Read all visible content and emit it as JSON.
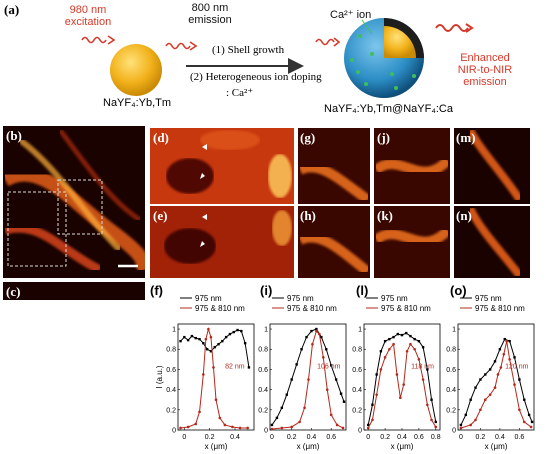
{
  "schematic": {
    "panel_label": "(a)",
    "excitation_label": [
      "980 nm",
      "excitation"
    ],
    "emission_label": [
      "800 nm",
      "emission"
    ],
    "core_label": "NaYF₄:Yb,Tm",
    "step1": "(1) Shell growth",
    "step2": "(2) Heterogeneous ion doping",
    "step2_sub": ": Ca²⁺",
    "ca_label": "Ca²⁺ ion",
    "product_label": "NaYF₄:Yb,Tm@NaYF₄:Ca",
    "enhanced_label": [
      "Enhanced",
      "NIR-to-NIR",
      "emission"
    ]
  },
  "image_panels": {
    "b": "(b)",
    "c": "(c)",
    "d": "(d)",
    "e": "(e)",
    "g": "(g)",
    "h": "(h)",
    "j": "(j)",
    "k": "(k)",
    "m": "(m)",
    "n": "(n)"
  },
  "colors": {
    "black_series": "#000000",
    "red_series": "#b5281c",
    "core": "#f2b21c",
    "shell": "#2c8ec6",
    "arrow_red": "#d63a2a"
  },
  "chart_data": [
    {
      "panel": "(f)",
      "type": "line",
      "ylabel": "I (a.u.)",
      "xlabel": "x (μm)",
      "xlim": [
        -0.05,
        0.55
      ],
      "ylim": [
        0,
        1.05
      ],
      "xticks": [
        "0",
        "0.2",
        "0.4"
      ],
      "yticks": [
        "0",
        "0.2",
        "0.4",
        "0.6",
        "0.8",
        "1"
      ],
      "annotation": "82 nm",
      "series": [
        {
          "name": "975 nm",
          "marker": "square",
          "x": [
            -0.03,
            0.0,
            0.03,
            0.06,
            0.09,
            0.12,
            0.15,
            0.18,
            0.21,
            0.24,
            0.27,
            0.3,
            0.33,
            0.36,
            0.39,
            0.42,
            0.45,
            0.48,
            0.51
          ],
          "y": [
            0.88,
            0.92,
            0.89,
            0.93,
            0.91,
            0.9,
            0.86,
            0.8,
            0.78,
            0.82,
            0.85,
            0.88,
            0.92,
            0.95,
            0.97,
            0.99,
            0.98,
            0.86,
            0.62
          ]
        },
        {
          "name": "975 & 810 nm",
          "marker": "circle",
          "x": [
            -0.03,
            0.03,
            0.09,
            0.12,
            0.15,
            0.17,
            0.19,
            0.21,
            0.23,
            0.25,
            0.28,
            0.32,
            0.38,
            0.44,
            0.5
          ],
          "y": [
            0.02,
            0.03,
            0.06,
            0.18,
            0.55,
            0.9,
            1.0,
            0.92,
            0.62,
            0.3,
            0.12,
            0.05,
            0.03,
            0.02,
            0.02
          ]
        }
      ]
    },
    {
      "panel": "(i)",
      "type": "line",
      "xlabel": "x (μm)",
      "xlim": [
        -0.02,
        0.75
      ],
      "ylim": [
        0,
        1.05
      ],
      "xticks": [
        "0",
        "0.2",
        "0.4",
        "0.6"
      ],
      "yticks": [
        "0",
        "0.2",
        "0.4",
        "0.6",
        "0.8",
        "1"
      ],
      "annotation": "106 nm",
      "series": [
        {
          "name": "975 nm",
          "marker": "square",
          "x": [
            0.0,
            0.05,
            0.1,
            0.15,
            0.2,
            0.25,
            0.3,
            0.35,
            0.4,
            0.45,
            0.5,
            0.55,
            0.6,
            0.65,
            0.7,
            0.73
          ],
          "y": [
            0.05,
            0.12,
            0.22,
            0.35,
            0.5,
            0.65,
            0.8,
            0.92,
            0.98,
            1.0,
            0.92,
            0.8,
            0.64,
            0.5,
            0.36,
            0.28
          ]
        },
        {
          "name": "975 & 810 nm",
          "marker": "circle",
          "x": [
            0.0,
            0.1,
            0.2,
            0.28,
            0.33,
            0.37,
            0.41,
            0.45,
            0.48,
            0.52,
            0.56,
            0.6,
            0.66,
            0.72
          ],
          "y": [
            0.01,
            0.02,
            0.03,
            0.08,
            0.22,
            0.5,
            0.85,
            0.98,
            0.95,
            0.72,
            0.4,
            0.15,
            0.05,
            0.02
          ]
        }
      ]
    },
    {
      "panel": "(l)",
      "type": "line",
      "xlabel": "x (μm)",
      "xlim": [
        -0.05,
        0.85
      ],
      "ylim": [
        0,
        1.05
      ],
      "xticks": [
        "0",
        "0.2",
        "0.4",
        "0.6",
        "0.8"
      ],
      "yticks": [
        "0",
        "0.2",
        "0.4",
        "0.6",
        "0.8",
        "1"
      ],
      "annotation": "118 nm",
      "series": [
        {
          "name": "975 nm",
          "marker": "square",
          "x": [
            0.0,
            0.05,
            0.1,
            0.15,
            0.2,
            0.25,
            0.3,
            0.35,
            0.4,
            0.45,
            0.5,
            0.55,
            0.6,
            0.65,
            0.7,
            0.75,
            0.8
          ],
          "y": [
            0.05,
            0.25,
            0.55,
            0.78,
            0.88,
            0.9,
            0.92,
            0.95,
            0.94,
            0.96,
            0.93,
            0.9,
            0.88,
            0.82,
            0.6,
            0.3,
            0.08
          ]
        },
        {
          "name": "975 & 810 nm",
          "marker": "circle",
          "x": [
            0.0,
            0.05,
            0.1,
            0.15,
            0.2,
            0.25,
            0.3,
            0.34,
            0.38,
            0.42,
            0.46,
            0.5,
            0.55,
            0.6,
            0.65,
            0.7,
            0.75,
            0.8
          ],
          "y": [
            0.02,
            0.1,
            0.35,
            0.6,
            0.72,
            0.8,
            0.85,
            0.55,
            0.32,
            0.45,
            0.78,
            0.85,
            0.8,
            0.7,
            0.5,
            0.25,
            0.1,
            0.03
          ]
        }
      ]
    },
    {
      "panel": "(o)",
      "type": "line",
      "xlabel": "x (μm)",
      "xlim": [
        -0.03,
        0.75
      ],
      "ylim": [
        0,
        1.05
      ],
      "xticks": [
        "0",
        "0.2",
        "0.4",
        "0.6"
      ],
      "yticks": [
        "0",
        "0.2",
        "0.4",
        "0.6",
        "0.8",
        "1"
      ],
      "annotation": "120 nm",
      "series": [
        {
          "name": "975 nm",
          "marker": "square",
          "x": [
            0.0,
            0.05,
            0.1,
            0.15,
            0.2,
            0.25,
            0.3,
            0.35,
            0.4,
            0.45,
            0.5,
            0.55,
            0.6,
            0.65,
            0.7,
            0.73
          ],
          "y": [
            0.05,
            0.15,
            0.3,
            0.42,
            0.5,
            0.55,
            0.6,
            0.68,
            0.8,
            0.9,
            0.88,
            0.72,
            0.5,
            0.3,
            0.15,
            0.08
          ]
        },
        {
          "name": "975 & 810 nm",
          "marker": "circle",
          "x": [
            0.0,
            0.1,
            0.15,
            0.2,
            0.25,
            0.3,
            0.35,
            0.38,
            0.41,
            0.44,
            0.47,
            0.5,
            0.55,
            0.6,
            0.65,
            0.72
          ],
          "y": [
            0.02,
            0.05,
            0.1,
            0.2,
            0.3,
            0.35,
            0.42,
            0.55,
            0.62,
            0.75,
            0.88,
            0.7,
            0.45,
            0.2,
            0.08,
            0.03
          ]
        }
      ]
    }
  ]
}
